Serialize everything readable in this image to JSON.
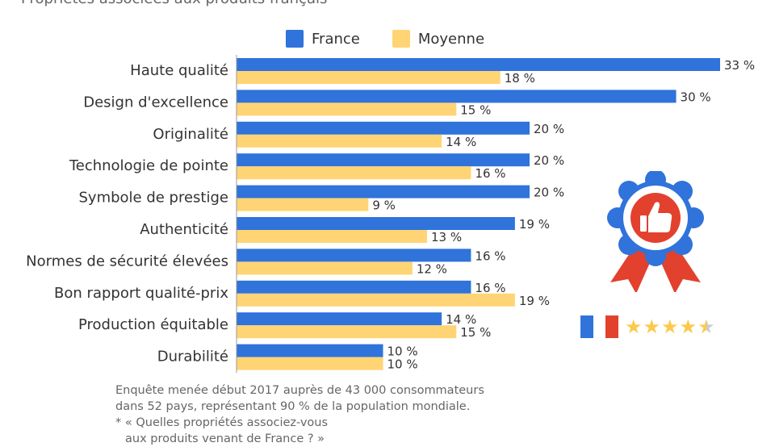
{
  "subtitle": "Propriétés associées aux produits français *",
  "legend": [
    {
      "label": "France",
      "color": "#2f73db"
    },
    {
      "label": "Moyenne",
      "color": "#ffd474"
    }
  ],
  "chart_data": {
    "type": "bar",
    "orientation": "horizontal",
    "categories": [
      "Haute qualité",
      "Design d'excellence",
      "Originalité",
      "Technologie de pointe",
      "Symbole de prestige",
      "Authenticité",
      "Normes de sécurité élevées",
      "Bon rapport qualité-prix",
      "Production équitable",
      "Durabilité"
    ],
    "series": [
      {
        "name": "France",
        "color": "#2f73db",
        "values": [
          33,
          30,
          20,
          20,
          20,
          19,
          16,
          16,
          14,
          10
        ],
        "labels": [
          "33 %",
          "30 %",
          "20 %",
          "20 %",
          "20 %",
          "19 %",
          "16 %",
          "16 %",
          "14 %",
          "10 %"
        ]
      },
      {
        "name": "Moyenne",
        "color": "#ffd474",
        "values": [
          18,
          15,
          14,
          16,
          9,
          13,
          12,
          19,
          15,
          10
        ],
        "labels": [
          "18 %",
          "15 %",
          "14 %",
          "16 %",
          "9 %",
          "13 %",
          "12 %",
          "19 %",
          "15 %",
          "10 %"
        ]
      }
    ],
    "xlim": [
      0,
      33
    ],
    "grid": false,
    "legend_position": "top"
  },
  "note": {
    "line1": "Enquête menée début 2017 auprès de 43 000 consommateurs",
    "line2": "dans 52 pays, représentant 90 % de la population mondiale.",
    "line3": "* « Quelles propriétés associez-vous",
    "line4": "aux produits venant de France ? »"
  },
  "illustration": {
    "badge_icon": "thumbs-up-icon",
    "flag_colors": [
      "#2f73db",
      "#ffffff",
      "#e2412e"
    ],
    "rating": 4.5,
    "rating_max": 5
  }
}
